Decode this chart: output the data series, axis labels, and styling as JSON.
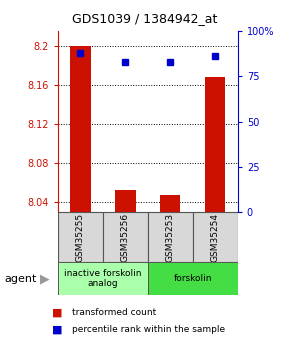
{
  "title": "GDS1039 / 1384942_at",
  "samples": [
    "GSM35255",
    "GSM35256",
    "GSM35253",
    "GSM35254"
  ],
  "red_values": [
    8.2,
    8.053,
    8.048,
    8.168
  ],
  "blue_values_pct": [
    88,
    83,
    83,
    86
  ],
  "ylim_left": [
    8.03,
    8.215
  ],
  "ylim_right": [
    0,
    100
  ],
  "yticks_left": [
    8.04,
    8.08,
    8.12,
    8.16,
    8.2
  ],
  "yticks_right": [
    0,
    25,
    50,
    75,
    100
  ],
  "ytick_labels_left": [
    "8.04",
    "8.08",
    "8.12",
    "8.16",
    "8.2"
  ],
  "ytick_labels_right": [
    "0",
    "25",
    "50",
    "75",
    "100%"
  ],
  "groups": [
    {
      "label": "inactive forskolin\nanalog",
      "samples": [
        0,
        1
      ],
      "color": "#aaffaa"
    },
    {
      "label": "forskolin",
      "samples": [
        2,
        3
      ],
      "color": "#44dd44"
    }
  ],
  "bar_color": "#cc1100",
  "dot_color": "#0000cc",
  "sample_box_color": "#d8d8d8",
  "agent_label": "agent",
  "legend_red": "transformed count",
  "legend_blue": "percentile rank within the sample",
  "left_axis_color": "#cc1100",
  "right_axis_color": "#0000cc"
}
